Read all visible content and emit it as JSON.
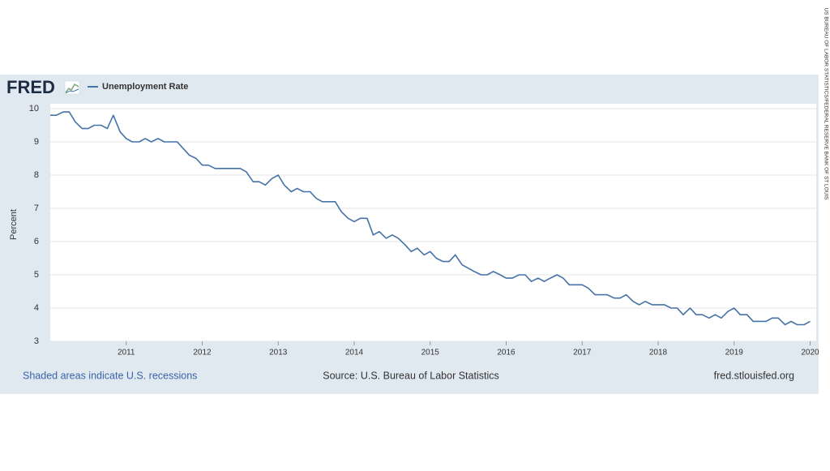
{
  "chart_data": {
    "type": "line",
    "brand": "FRED",
    "y_label": "Percent",
    "footnote": "Shaded areas indicate U.S. recessions",
    "source": "Source: U.S. Bureau of Labor Statistics",
    "url": "fred.stlouisfed.org",
    "credit": "US BUREAU OF LABOR STATISTICS/FEDERAL RESERVE BANK OF ST LOUIS",
    "grid": true,
    "xlim": [
      2010,
      2020.08
    ],
    "ylim": [
      3,
      10
    ],
    "xticks": [
      2011,
      2012,
      2013,
      2014,
      2015,
      2016,
      2017,
      2018,
      2019,
      2020
    ],
    "yticks": [
      3,
      4,
      5,
      6,
      7,
      8,
      9,
      10
    ],
    "x": [
      2010.0,
      2010.08,
      2010.17,
      2010.25,
      2010.33,
      2010.42,
      2010.5,
      2010.58,
      2010.67,
      2010.75,
      2010.83,
      2010.92,
      2011.0,
      2011.08,
      2011.17,
      2011.25,
      2011.33,
      2011.42,
      2011.5,
      2011.58,
      2011.67,
      2011.75,
      2011.83,
      2011.92,
      2012.0,
      2012.08,
      2012.17,
      2012.25,
      2012.33,
      2012.42,
      2012.5,
      2012.58,
      2012.67,
      2012.75,
      2012.83,
      2012.92,
      2013.0,
      2013.08,
      2013.17,
      2013.25,
      2013.33,
      2013.42,
      2013.5,
      2013.58,
      2013.67,
      2013.75,
      2013.83,
      2013.92,
      2014.0,
      2014.08,
      2014.17,
      2014.25,
      2014.33,
      2014.42,
      2014.5,
      2014.58,
      2014.67,
      2014.75,
      2014.83,
      2014.92,
      2015.0,
      2015.08,
      2015.17,
      2015.25,
      2015.33,
      2015.42,
      2015.5,
      2015.58,
      2015.67,
      2015.75,
      2015.83,
      2015.92,
      2016.0,
      2016.08,
      2016.17,
      2016.25,
      2016.33,
      2016.42,
      2016.5,
      2016.58,
      2016.67,
      2016.75,
      2016.83,
      2016.92,
      2017.0,
      2017.08,
      2017.17,
      2017.25,
      2017.33,
      2017.42,
      2017.5,
      2017.58,
      2017.67,
      2017.75,
      2017.83,
      2017.92,
      2018.0,
      2018.08,
      2018.17,
      2018.25,
      2018.33,
      2018.42,
      2018.5,
      2018.58,
      2018.67,
      2018.75,
      2018.83,
      2018.92,
      2019.0,
      2019.08,
      2019.17,
      2019.25,
      2019.33,
      2019.42,
      2019.5,
      2019.58,
      2019.67,
      2019.75,
      2019.83,
      2019.92,
      2020.0
    ],
    "series": [
      {
        "name": "Unemployment Rate",
        "color": "#4572a7",
        "values": [
          9.8,
          9.8,
          9.9,
          9.9,
          9.6,
          9.4,
          9.4,
          9.5,
          9.5,
          9.4,
          9.8,
          9.3,
          9.1,
          9.0,
          9.0,
          9.1,
          9.0,
          9.1,
          9.0,
          9.0,
          9.0,
          8.8,
          8.6,
          8.5,
          8.3,
          8.3,
          8.2,
          8.2,
          8.2,
          8.2,
          8.2,
          8.1,
          7.8,
          7.8,
          7.7,
          7.9,
          8.0,
          7.7,
          7.5,
          7.6,
          7.5,
          7.5,
          7.3,
          7.2,
          7.2,
          7.2,
          6.9,
          6.7,
          6.6,
          6.7,
          6.7,
          6.2,
          6.3,
          6.1,
          6.2,
          6.1,
          5.9,
          5.7,
          5.8,
          5.6,
          5.7,
          5.5,
          5.4,
          5.4,
          5.6,
          5.3,
          5.2,
          5.1,
          5.0,
          5.0,
          5.1,
          5.0,
          4.9,
          4.9,
          5.0,
          5.0,
          4.8,
          4.9,
          4.8,
          4.9,
          5.0,
          4.9,
          4.7,
          4.7,
          4.7,
          4.6,
          4.4,
          4.4,
          4.4,
          4.3,
          4.3,
          4.4,
          4.2,
          4.1,
          4.2,
          4.1,
          4.1,
          4.1,
          4.0,
          4.0,
          3.8,
          4.0,
          3.8,
          3.8,
          3.7,
          3.8,
          3.7,
          3.9,
          4.0,
          3.8,
          3.8,
          3.6,
          3.6,
          3.6,
          3.7,
          3.7,
          3.5,
          3.6,
          3.5,
          3.5,
          3.6
        ]
      }
    ]
  }
}
